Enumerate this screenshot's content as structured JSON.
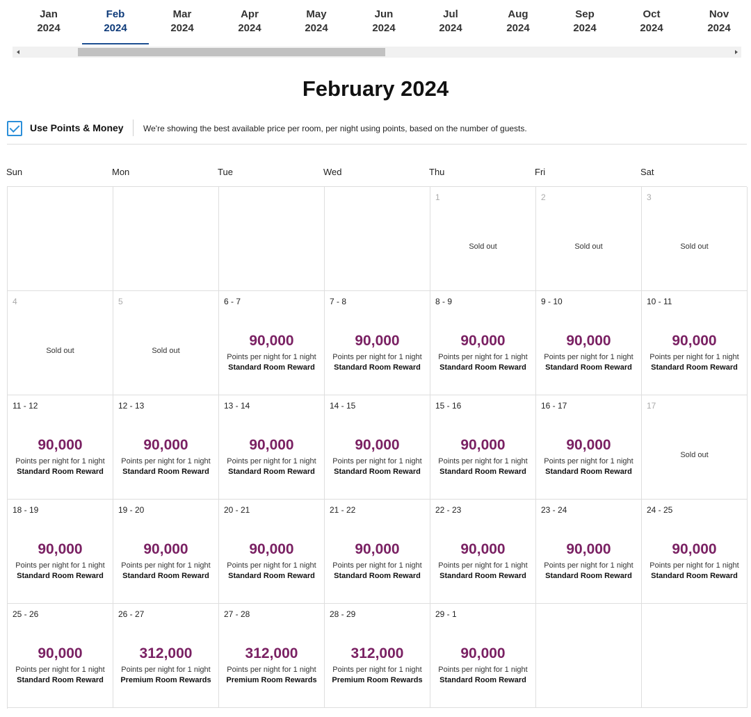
{
  "months": [
    {
      "m": "Jan",
      "y": "2024"
    },
    {
      "m": "Feb",
      "y": "2024"
    },
    {
      "m": "Mar",
      "y": "2024"
    },
    {
      "m": "Apr",
      "y": "2024"
    },
    {
      "m": "May",
      "y": "2024"
    },
    {
      "m": "Jun",
      "y": "2024"
    },
    {
      "m": "Jul",
      "y": "2024"
    },
    {
      "m": "Aug",
      "y": "2024"
    },
    {
      "m": "Sep",
      "y": "2024"
    },
    {
      "m": "Oct",
      "y": "2024"
    },
    {
      "m": "Nov",
      "y": "2024"
    }
  ],
  "active_month_index": 1,
  "title": "February 2024",
  "points_money": {
    "label": "Use Points & Money",
    "checked": true,
    "note": "We're showing the best available price per room, per night using points, based on the number of guests."
  },
  "weekdays": [
    "Sun",
    "Mon",
    "Tue",
    "Wed",
    "Thu",
    "Fri",
    "Sat"
  ],
  "colors": {
    "points": "#7a2163",
    "active_tab": "#0e3b7a",
    "checkbox": "#2b8fd9"
  },
  "cells": [
    {
      "date": "",
      "status": "empty"
    },
    {
      "date": "",
      "status": "empty"
    },
    {
      "date": "",
      "status": "empty"
    },
    {
      "date": "",
      "status": "empty"
    },
    {
      "date": "1",
      "status": "sold",
      "sold_text": "Sold out"
    },
    {
      "date": "2",
      "status": "sold",
      "sold_text": "Sold out"
    },
    {
      "date": "3",
      "status": "sold",
      "sold_text": "Sold out"
    },
    {
      "date": "4",
      "status": "sold",
      "sold_text": "Sold out"
    },
    {
      "date": "5",
      "status": "sold",
      "sold_text": "Sold out"
    },
    {
      "date": "6 - 7",
      "status": "available",
      "points": "90,000",
      "per": "Points per night for 1 night",
      "reward": "Standard Room Reward"
    },
    {
      "date": "7 - 8",
      "status": "available",
      "points": "90,000",
      "per": "Points per night for 1 night",
      "reward": "Standard Room Reward"
    },
    {
      "date": "8 - 9",
      "status": "available",
      "points": "90,000",
      "per": "Points per night for 1 night",
      "reward": "Standard Room Reward"
    },
    {
      "date": "9 - 10",
      "status": "available",
      "points": "90,000",
      "per": "Points per night for 1 night",
      "reward": "Standard Room Reward"
    },
    {
      "date": "10 - 11",
      "status": "available",
      "points": "90,000",
      "per": "Points per night for 1 night",
      "reward": "Standard Room Reward"
    },
    {
      "date": "11 - 12",
      "status": "available",
      "points": "90,000",
      "per": "Points per night for 1 night",
      "reward": "Standard Room Reward"
    },
    {
      "date": "12 - 13",
      "status": "available",
      "points": "90,000",
      "per": "Points per night for 1 night",
      "reward": "Standard Room Reward"
    },
    {
      "date": "13 - 14",
      "status": "available",
      "points": "90,000",
      "per": "Points per night for 1 night",
      "reward": "Standard Room Reward"
    },
    {
      "date": "14 - 15",
      "status": "available",
      "points": "90,000",
      "per": "Points per night for 1 night",
      "reward": "Standard Room Reward"
    },
    {
      "date": "15 - 16",
      "status": "available",
      "points": "90,000",
      "per": "Points per night for 1 night",
      "reward": "Standard Room Reward"
    },
    {
      "date": "16 - 17",
      "status": "available",
      "points": "90,000",
      "per": "Points per night for 1 night",
      "reward": "Standard Room Reward"
    },
    {
      "date": "17",
      "status": "sold",
      "sold_text": "Sold out"
    },
    {
      "date": "18 - 19",
      "status": "available",
      "points": "90,000",
      "per": "Points per night for 1 night",
      "reward": "Standard Room Reward"
    },
    {
      "date": "19 - 20",
      "status": "available",
      "points": "90,000",
      "per": "Points per night for 1 night",
      "reward": "Standard Room Reward"
    },
    {
      "date": "20 - 21",
      "status": "available",
      "points": "90,000",
      "per": "Points per night for 1 night",
      "reward": "Standard Room Reward"
    },
    {
      "date": "21 - 22",
      "status": "available",
      "points": "90,000",
      "per": "Points per night for 1 night",
      "reward": "Standard Room Reward"
    },
    {
      "date": "22 - 23",
      "status": "available",
      "points": "90,000",
      "per": "Points per night for 1 night",
      "reward": "Standard Room Reward"
    },
    {
      "date": "23 - 24",
      "status": "available",
      "points": "90,000",
      "per": "Points per night for 1 night",
      "reward": "Standard Room Reward"
    },
    {
      "date": "24 - 25",
      "status": "available",
      "points": "90,000",
      "per": "Points per night for 1 night",
      "reward": "Standard Room Reward"
    },
    {
      "date": "25 - 26",
      "status": "available",
      "points": "90,000",
      "per": "Points per night for 1 night",
      "reward": "Standard Room Reward"
    },
    {
      "date": "26 - 27",
      "status": "available",
      "points": "312,000",
      "per": "Points per night for 1 night",
      "reward": "Premium Room Rewards"
    },
    {
      "date": "27 - 28",
      "status": "available",
      "points": "312,000",
      "per": "Points per night for 1 night",
      "reward": "Premium Room Rewards"
    },
    {
      "date": "28 - 29",
      "status": "available",
      "points": "312,000",
      "per": "Points per night for 1 night",
      "reward": "Premium Room Rewards"
    },
    {
      "date": "29 - 1",
      "status": "available",
      "points": "90,000",
      "per": "Points per night for 1 night",
      "reward": "Standard Room Reward"
    },
    {
      "date": "",
      "status": "empty"
    },
    {
      "date": "",
      "status": "empty"
    }
  ]
}
